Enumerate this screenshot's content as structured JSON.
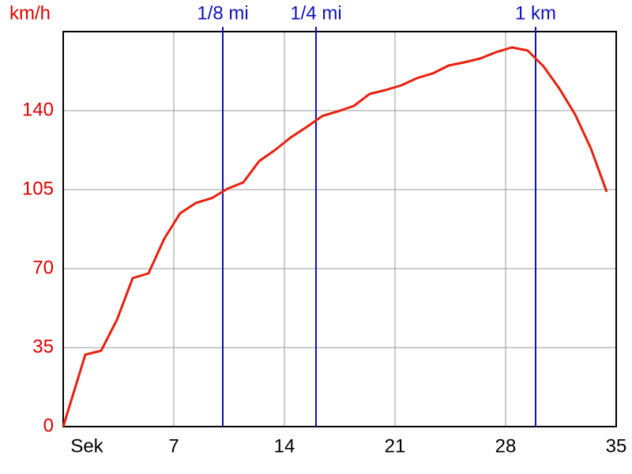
{
  "chart_data": {
    "type": "line",
    "y_label": "km/h",
    "x": [
      0,
      1.4,
      2.4,
      3.4,
      4.4,
      5.4,
      6.4,
      7.4,
      8.4,
      9.4,
      10.4,
      11.4,
      12.4,
      13.4,
      14.4,
      15.4,
      16.4,
      17.4,
      18.4,
      19.4,
      20.4,
      21.4,
      22.4,
      23.4,
      24.4,
      25.4,
      26.4,
      27.4,
      28.4,
      29.4,
      30.4,
      31.4,
      32.4,
      33.4,
      34.4
    ],
    "values": [
      0,
      31.9,
      33.6,
      47.3,
      65.8,
      67.9,
      83.3,
      94.5,
      99.1,
      101.2,
      105.4,
      108.2,
      117.6,
      122.5,
      128.1,
      132.7,
      137.6,
      139.7,
      142.1,
      147.4,
      149.1,
      151.2,
      154.4,
      156.5,
      160,
      161.4,
      163.1,
      165.9,
      168,
      166.6,
      159.6,
      149.8,
      138.3,
      123.2,
      104
    ],
    "color": "#e8200e",
    "xlim": [
      0,
      35
    ],
    "xticks": [
      {
        "value": 0,
        "label": "Sek"
      },
      7,
      14,
      21,
      28,
      35
    ],
    "ylim": [
      0,
      175
    ],
    "yticks": [
      0,
      35,
      70,
      105,
      140
    ],
    "y_tick_color": "#e00000",
    "grid": true,
    "markers": [
      {
        "label": "1/8 mi",
        "x": 10.1
      },
      {
        "label": "1/4 mi",
        "x": 16
      },
      {
        "label": "1 km",
        "x": 29.9
      }
    ],
    "marker_color": "#1010c0"
  }
}
